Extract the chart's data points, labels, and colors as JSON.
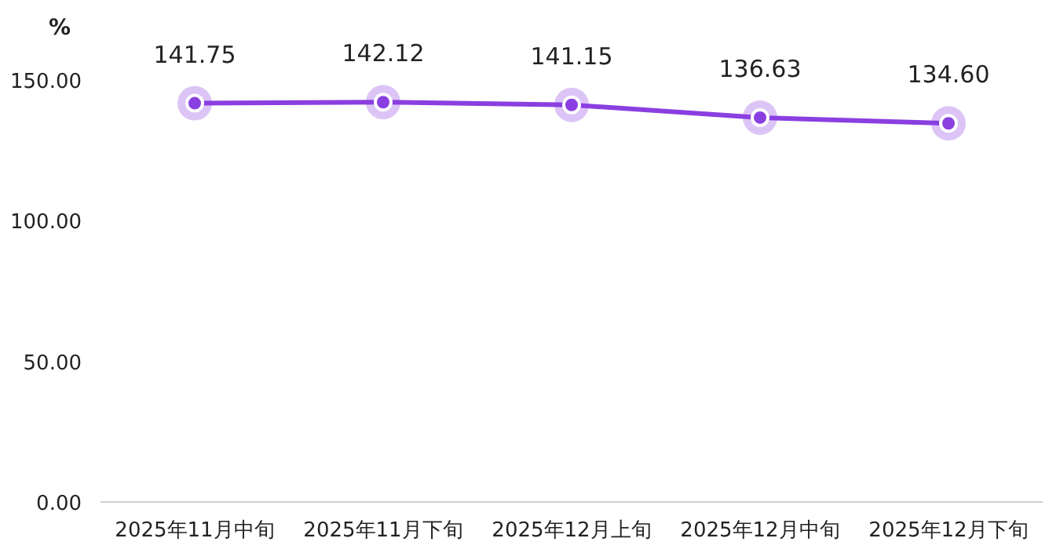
{
  "chart_data": {
    "type": "line",
    "ylabel": "%",
    "categories": [
      "2025年11月中旬",
      "2025年11月下旬",
      "2025年12月上旬",
      "2025年12月中旬",
      "2025年12月下旬"
    ],
    "series": [
      {
        "color": "#8a3fe0",
        "values": [
          141.75,
          142.12,
          141.15,
          136.63,
          134.6
        ],
        "value_labels": [
          "141.75",
          "142.12",
          "141.15",
          "136.63",
          "134.60"
        ]
      }
    ],
    "ylim": [
      0,
      150
    ],
    "yticks": [
      {
        "value": 0,
        "label": "0.00"
      },
      {
        "value": 50,
        "label": "50.00"
      },
      {
        "value": 100,
        "label": "100.00"
      },
      {
        "value": 150,
        "label": "150.00"
      }
    ],
    "marker": "circle",
    "line_style": "solid",
    "grid": false
  }
}
